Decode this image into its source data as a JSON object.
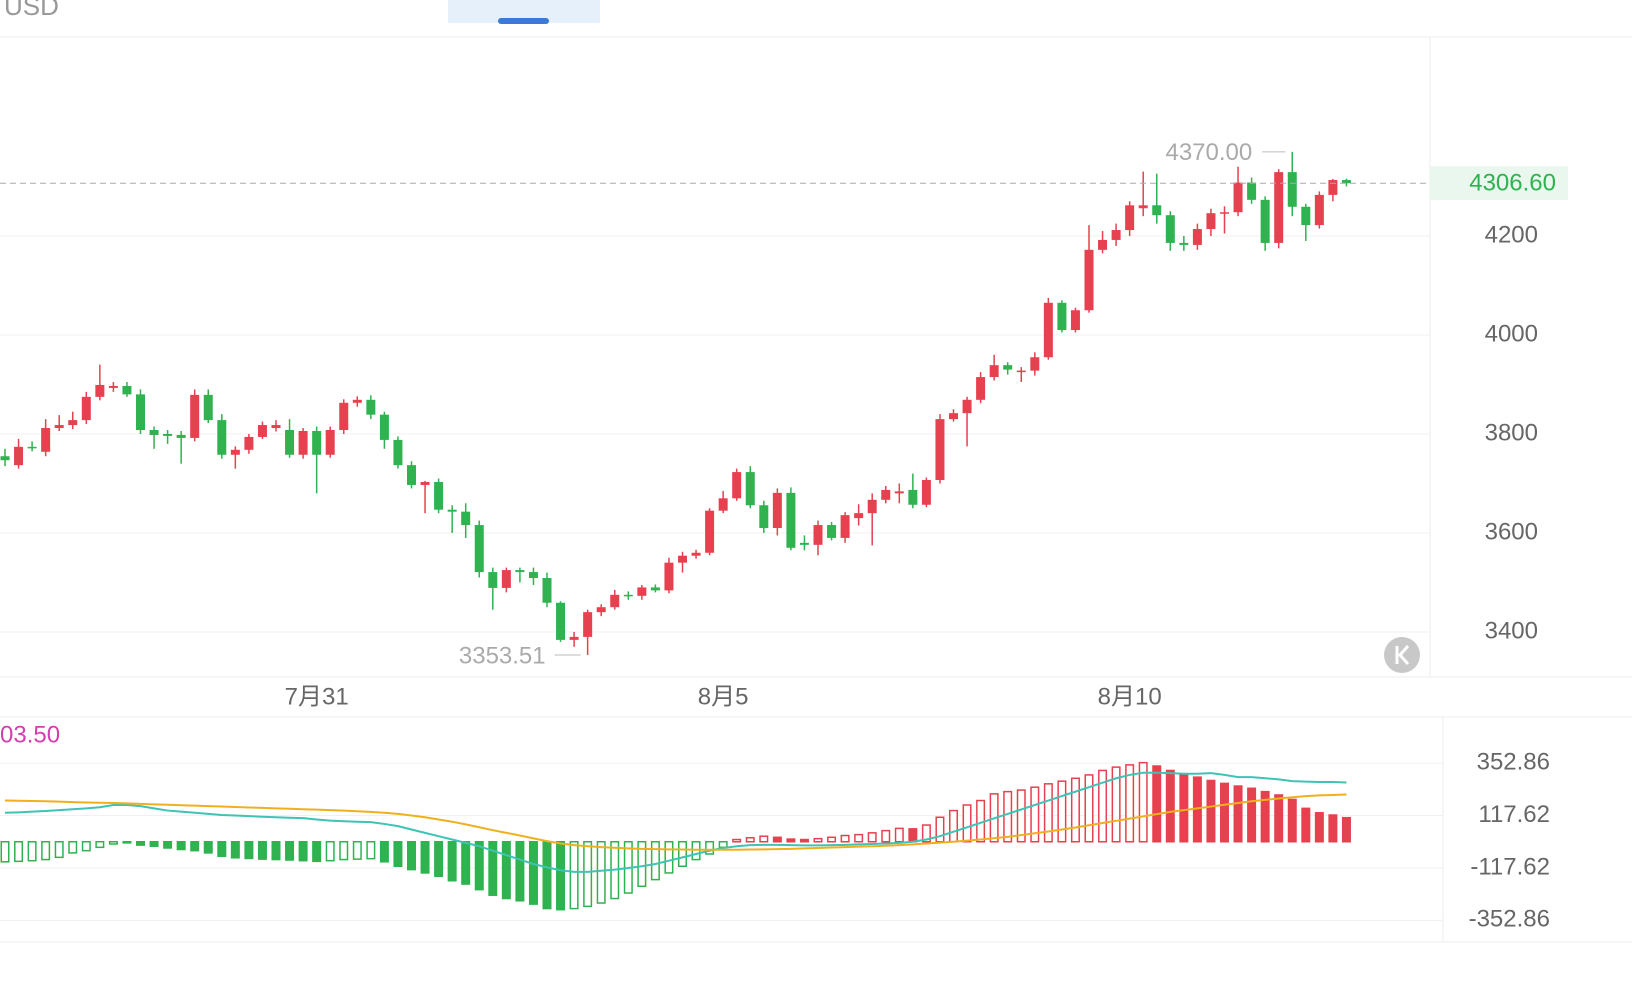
{
  "header": {
    "currency": "USD"
  },
  "chart_data": [
    {
      "type": "candlestick",
      "categories": [
        null,
        null,
        null,
        null,
        null,
        null,
        null,
        null,
        null,
        null,
        null,
        null,
        null,
        null,
        null,
        null,
        null,
        null,
        null,
        null,
        null,
        null,
        null,
        "7月31",
        null,
        null,
        null,
        null,
        null,
        null,
        null,
        null,
        null,
        null,
        null,
        null,
        null,
        null,
        null,
        null,
        null,
        null,
        null,
        null,
        null,
        null,
        null,
        null,
        null,
        null,
        null,
        null,
        null,
        "8月5",
        null,
        null,
        null,
        null,
        null,
        null,
        null,
        null,
        null,
        null,
        null,
        null,
        null,
        null,
        null,
        null,
        null,
        null,
        null,
        null,
        null,
        null,
        null,
        null,
        null,
        null,
        null,
        null,
        null,
        "8月10",
        null,
        null,
        null,
        null,
        null,
        null,
        null,
        null,
        null,
        null,
        null,
        null,
        null,
        null,
        null,
        null
      ],
      "open": [
        3755,
        3737,
        3774,
        3764,
        3812,
        3818,
        3828,
        3875,
        3893,
        3897,
        3880,
        3808,
        3800,
        3798,
        3792,
        3879,
        3828,
        3758,
        3768,
        3794,
        3812,
        3808,
        3758,
        3806,
        3758,
        3808,
        3863,
        3869,
        3839,
        3788,
        3737,
        3697,
        3703,
        3647,
        3643,
        3616,
        3521,
        3489,
        3525,
        3521,
        3509,
        3459,
        3384,
        3390,
        3440,
        3450,
        3475,
        3473,
        3490,
        3484,
        3540,
        3554,
        3560,
        3645,
        3670,
        3723,
        3656,
        3610,
        3681,
        3580,
        3576,
        3616,
        3590,
        3630,
        3640,
        3667,
        3680,
        3687,
        3657,
        3707,
        3830,
        3842,
        3869,
        3915,
        3939,
        3925,
        3928,
        3955,
        4065,
        4010,
        4050,
        4172,
        4192,
        4212,
        4256,
        4262,
        4242,
        4186,
        4182,
        4214,
        4246,
        4248,
        4308,
        4273,
        4186,
        4329,
        4259,
        4222,
        4283,
        4313
      ],
      "high": [
        3770,
        3790,
        3785,
        3830,
        3838,
        3845,
        3885,
        3940,
        3905,
        3905,
        3890,
        3815,
        3808,
        3806,
        3890,
        3890,
        3840,
        3775,
        3800,
        3825,
        3828,
        3830,
        3812,
        3815,
        3815,
        3870,
        3876,
        3878,
        3845,
        3795,
        3745,
        3705,
        3710,
        3656,
        3660,
        3625,
        3530,
        3530,
        3530,
        3530,
        3520,
        3462,
        3400,
        3445,
        3456,
        3485,
        3482,
        3495,
        3496,
        3550,
        3562,
        3566,
        3650,
        3685,
        3730,
        3735,
        3665,
        3690,
        3692,
        3595,
        3625,
        3622,
        3642,
        3658,
        3680,
        3695,
        3700,
        3720,
        3712,
        3840,
        3850,
        3875,
        3925,
        3960,
        3945,
        3935,
        3965,
        4075,
        4070,
        4055,
        4222,
        4210,
        4225,
        4270,
        4330,
        4326,
        4250,
        4200,
        4225,
        4255,
        4260,
        4340,
        4318,
        4280,
        4335,
        4370,
        4265,
        4290,
        4315,
        4316
      ],
      "low": [
        3735,
        3730,
        3765,
        3755,
        3806,
        3810,
        3820,
        3868,
        3885,
        3875,
        3800,
        3770,
        3780,
        3740,
        3785,
        3822,
        3750,
        3730,
        3760,
        3790,
        3805,
        3752,
        3750,
        3680,
        3752,
        3800,
        3855,
        3830,
        3770,
        3730,
        3690,
        3640,
        3640,
        3600,
        3590,
        3510,
        3445,
        3480,
        3500,
        3495,
        3450,
        3380,
        3370,
        3353.51,
        3432,
        3445,
        3465,
        3465,
        3480,
        3478,
        3520,
        3548,
        3555,
        3640,
        3665,
        3650,
        3600,
        3595,
        3565,
        3565,
        3555,
        3585,
        3580,
        3615,
        3575,
        3660,
        3660,
        3650,
        3652,
        3700,
        3825,
        3775,
        3862,
        3908,
        3920,
        3905,
        3918,
        3950,
        4005,
        4005,
        4045,
        4165,
        4180,
        4200,
        4240,
        4225,
        4170,
        4170,
        4172,
        4200,
        4205,
        4240,
        4265,
        4170,
        4175,
        4240,
        4190,
        4215,
        4270,
        4300
      ],
      "close": [
        3747,
        3774,
        3772,
        3812,
        3818,
        3828,
        3875,
        3899,
        3897,
        3880,
        3808,
        3798,
        3796,
        3792,
        3879,
        3828,
        3758,
        3768,
        3794,
        3818,
        3818,
        3758,
        3806,
        3758,
        3808,
        3863,
        3869,
        3839,
        3788,
        3737,
        3697,
        3703,
        3647,
        3643,
        3616,
        3521,
        3489,
        3525,
        3521,
        3509,
        3459,
        3384,
        3390,
        3440,
        3450,
        3475,
        3473,
        3490,
        3484,
        3540,
        3554,
        3560,
        3645,
        3670,
        3723,
        3656,
        3610,
        3681,
        3570,
        3576,
        3616,
        3590,
        3636,
        3640,
        3667,
        3687,
        3684,
        3657,
        3707,
        3830,
        3842,
        3869,
        3915,
        3939,
        3930,
        3928,
        3955,
        4065,
        4010,
        4050,
        4172,
        4192,
        4212,
        4262,
        4262,
        4242,
        4186,
        4182,
        4214,
        4246,
        4248,
        4308,
        4273,
        4186,
        4329,
        4259,
        4222,
        4283,
        4313,
        4306.6
      ],
      "up_color": "#e5414f",
      "down_color": "#2fb24f",
      "ylim": [
        3309,
        4602
      ],
      "yticks": [
        3400,
        3600,
        3800,
        4000,
        4200
      ],
      "grid": true,
      "high_label": "4370.00",
      "low_label": "3353.51",
      "last_label": "4306.60"
    },
    {
      "type": "macd",
      "label": "03.50",
      "label_color": "#d23fae",
      "histogram": {
        "up_color": "#e5414f",
        "down_color": "#2fb24f",
        "values": [
          -90,
          -88,
          -85,
          -80,
          -70,
          -50,
          -40,
          -25,
          -10,
          -5,
          -15,
          -20,
          -28,
          -35,
          -40,
          -50,
          -65,
          -72,
          -75,
          -78,
          -80,
          -82,
          -85,
          -88,
          -85,
          -80,
          -78,
          -76,
          -90,
          -110,
          -125,
          -140,
          -155,
          -175,
          -190,
          -215,
          -240,
          -255,
          -265,
          -280,
          -300,
          -305,
          -300,
          -290,
          -275,
          -255,
          -230,
          -200,
          -170,
          -140,
          -110,
          -80,
          -55,
          -25,
          10,
          18,
          25,
          20,
          12,
          10,
          14,
          20,
          28,
          32,
          40,
          50,
          60,
          58,
          75,
          110,
          140,
          165,
          185,
          215,
          225,
          232,
          245,
          260,
          272,
          285,
          300,
          320,
          335,
          345,
          355,
          340,
          320,
          305,
          290,
          275,
          262,
          250,
          240,
          225,
          210,
          190,
          150,
          130,
          120,
          108
        ]
      },
      "lines": [
        {
          "color": "#3ec3b4",
          "values": [
            130,
            132,
            135,
            138,
            142,
            146,
            150,
            155,
            165,
            165,
            160,
            150,
            140,
            135,
            130,
            125,
            120,
            118,
            115,
            112,
            110,
            108,
            106,
            100,
            95,
            92,
            90,
            88,
            80,
            70,
            55,
            40,
            25,
            10,
            -5,
            -20,
            -40,
            -60,
            -80,
            -100,
            -115,
            -128,
            -135,
            -135,
            -130,
            -125,
            -118,
            -110,
            -100,
            -85,
            -70,
            -55,
            -40,
            -28,
            -20,
            -15,
            -14,
            -14,
            -15,
            -16,
            -16,
            -15,
            -14,
            -12,
            -10,
            -8,
            -5,
            0,
            10,
            25,
            45,
            65,
            85,
            105,
            125,
            145,
            165,
            185,
            205,
            225,
            245,
            265,
            285,
            300,
            310,
            310,
            308,
            305,
            305,
            308,
            300,
            290,
            290,
            285,
            280,
            272,
            270,
            268,
            268,
            266
          ]
        },
        {
          "color": "#f0b01e",
          "values": [
            185,
            184,
            183,
            182,
            180,
            178,
            176,
            175,
            174,
            172,
            170,
            168,
            166,
            164,
            162,
            160,
            158,
            156,
            154,
            152,
            150,
            148,
            146,
            144,
            142,
            140,
            137,
            134,
            130,
            125,
            118,
            110,
            100,
            90,
            78,
            65,
            52,
            40,
            28,
            15,
            3,
            -8,
            -15,
            -20,
            -24,
            -27,
            -30,
            -32,
            -33,
            -34,
            -35,
            -36,
            -36,
            -36,
            -36,
            -35,
            -34,
            -33,
            -32,
            -30,
            -28,
            -26,
            -24,
            -22,
            -20,
            -18,
            -15,
            -12,
            -8,
            -4,
            0,
            5,
            10,
            16,
            22,
            30,
            38,
            46,
            55,
            64,
            74,
            84,
            94,
            104,
            114,
            124,
            134,
            142,
            150,
            158,
            166,
            174,
            182,
            188,
            194,
            200,
            205,
            208,
            210,
            212
          ]
        }
      ],
      "ylim": [
        -450,
        560
      ],
      "yticks": [
        -352.86,
        -117.62,
        117.62,
        352.86
      ],
      "grid": true
    }
  ]
}
